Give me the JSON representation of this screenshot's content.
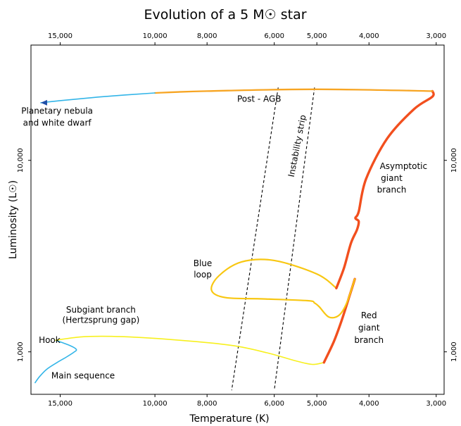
{
  "chart_data": {
    "type": "line",
    "title": "Evolution of a 5 M☉ star",
    "xlabel": "Temperature (K)",
    "ylabel": "Luminosity (L☉)",
    "x_scale": "log",
    "x_reversed": true,
    "y_scale": "log",
    "xlim": [
      17000,
      2900
    ],
    "ylim": [
      600,
      40000
    ],
    "x_ticks": [
      15000,
      10000,
      8000,
      6000,
      5000,
      4000,
      3000
    ],
    "x_tick_labels": [
      "15,000",
      "10,000",
      "8,000",
      "6,000",
      "5,000",
      "4,000",
      "3,000"
    ],
    "y_ticks": [
      1000,
      10000
    ],
    "y_tick_labels": [
      "1,000",
      "10,000"
    ],
    "grid": false,
    "series": [
      {
        "name": "Main sequence",
        "color": "#33b5e8",
        "points": [
          [
            16700,
            690
          ],
          [
            16400,
            740
          ],
          [
            15900,
            810
          ],
          [
            15200,
            880
          ],
          [
            14600,
            940
          ],
          [
            14150,
            995
          ],
          [
            14000,
            1030
          ],
          [
            14400,
            1080
          ],
          [
            15300,
            1150
          ]
        ]
      },
      {
        "name": "Subgiant branch (Hertzsprung gap)",
        "color": "#f7f01e",
        "points": [
          [
            15300,
            1150
          ],
          [
            13500,
            1200
          ],
          [
            11500,
            1200
          ],
          [
            9000,
            1150
          ],
          [
            7200,
            1080
          ],
          [
            6200,
            990
          ],
          [
            5500,
            900
          ],
          [
            5100,
            860
          ],
          [
            4850,
            880
          ]
        ]
      },
      {
        "name": "Red giant branch",
        "color": "#f24f1e",
        "points": [
          [
            4850,
            880
          ],
          [
            4650,
            1130
          ],
          [
            4500,
            1450
          ],
          [
            4350,
            1950
          ],
          [
            4250,
            2400
          ]
        ]
      },
      {
        "name": "Blue loop",
        "color": "#f8c712",
        "points": [
          [
            4250,
            2400
          ],
          [
            4400,
            1800
          ],
          [
            4550,
            1550
          ],
          [
            4750,
            1520
          ],
          [
            4950,
            1720
          ],
          [
            5050,
            1800
          ],
          [
            5200,
            1850
          ],
          [
            6300,
            1890
          ],
          [
            7400,
            1920
          ],
          [
            7850,
            2100
          ],
          [
            7600,
            2500
          ],
          [
            6900,
            2950
          ],
          [
            6000,
            3000
          ],
          [
            5000,
            2550
          ],
          [
            4600,
            2150
          ]
        ]
      },
      {
        "name": "Asymptotic giant branch",
        "color": "#f24f1e",
        "points": [
          [
            4600,
            2150
          ],
          [
            4450,
            2750
          ],
          [
            4320,
            3700
          ],
          [
            4210,
            4350
          ],
          [
            4180,
            4800
          ],
          [
            4240,
            5000
          ],
          [
            4180,
            5400
          ],
          [
            4050,
            8000
          ],
          [
            3700,
            13000
          ],
          [
            3300,
            18500
          ],
          [
            3050,
            21500
          ],
          [
            3050,
            23000
          ]
        ]
      },
      {
        "name": "Post - AGB",
        "color": "#f7a523",
        "points": [
          [
            3050,
            23000
          ],
          [
            5000,
            23500
          ],
          [
            8000,
            23000
          ],
          [
            10000,
            22500
          ]
        ]
      },
      {
        "name": "Planetary nebula and white dwarf",
        "color": "#33b5e8",
        "points": [
          [
            10000,
            22500
          ],
          [
            12500,
            21500
          ],
          [
            15000,
            20500
          ],
          [
            16300,
            20000
          ]
        ]
      }
    ],
    "instability_strip": {
      "label": "Instability strip",
      "lines": [
        [
          [
            5900,
            24000
          ],
          [
            7200,
            630
          ]
        ],
        [
          [
            5050,
            24000
          ],
          [
            6000,
            630
          ]
        ]
      ]
    },
    "annotations": [
      {
        "text": "Planetary nebula",
        "x": 15200,
        "y": 17500
      },
      {
        "text": "and white dwarf",
        "x": 15200,
        "y": 15200
      },
      {
        "text": "Post - AGB",
        "x": 6400,
        "y": 20200
      },
      {
        "text": "Asymptotic",
        "x": 3450,
        "y": 9000
      },
      {
        "text": "giant",
        "x": 3630,
        "y": 7800
      },
      {
        "text": "branch",
        "x": 3630,
        "y": 6800
      },
      {
        "text": "Blue",
        "x": 8150,
        "y": 2800
      },
      {
        "text": "loop",
        "x": 8150,
        "y": 2450
      },
      {
        "text": "Subgiant branch",
        "x": 12600,
        "y": 1600
      },
      {
        "text": "(Hertzsprung gap)",
        "x": 12600,
        "y": 1420
      },
      {
        "text": "Hook",
        "x": 15700,
        "y": 1115
      },
      {
        "text": "Main sequence",
        "x": 13600,
        "y": 725
      },
      {
        "text": "Red",
        "x": 4000,
        "y": 1500
      },
      {
        "text": "giant",
        "x": 4000,
        "y": 1290
      },
      {
        "text": "branch",
        "x": 4000,
        "y": 1115
      }
    ]
  }
}
